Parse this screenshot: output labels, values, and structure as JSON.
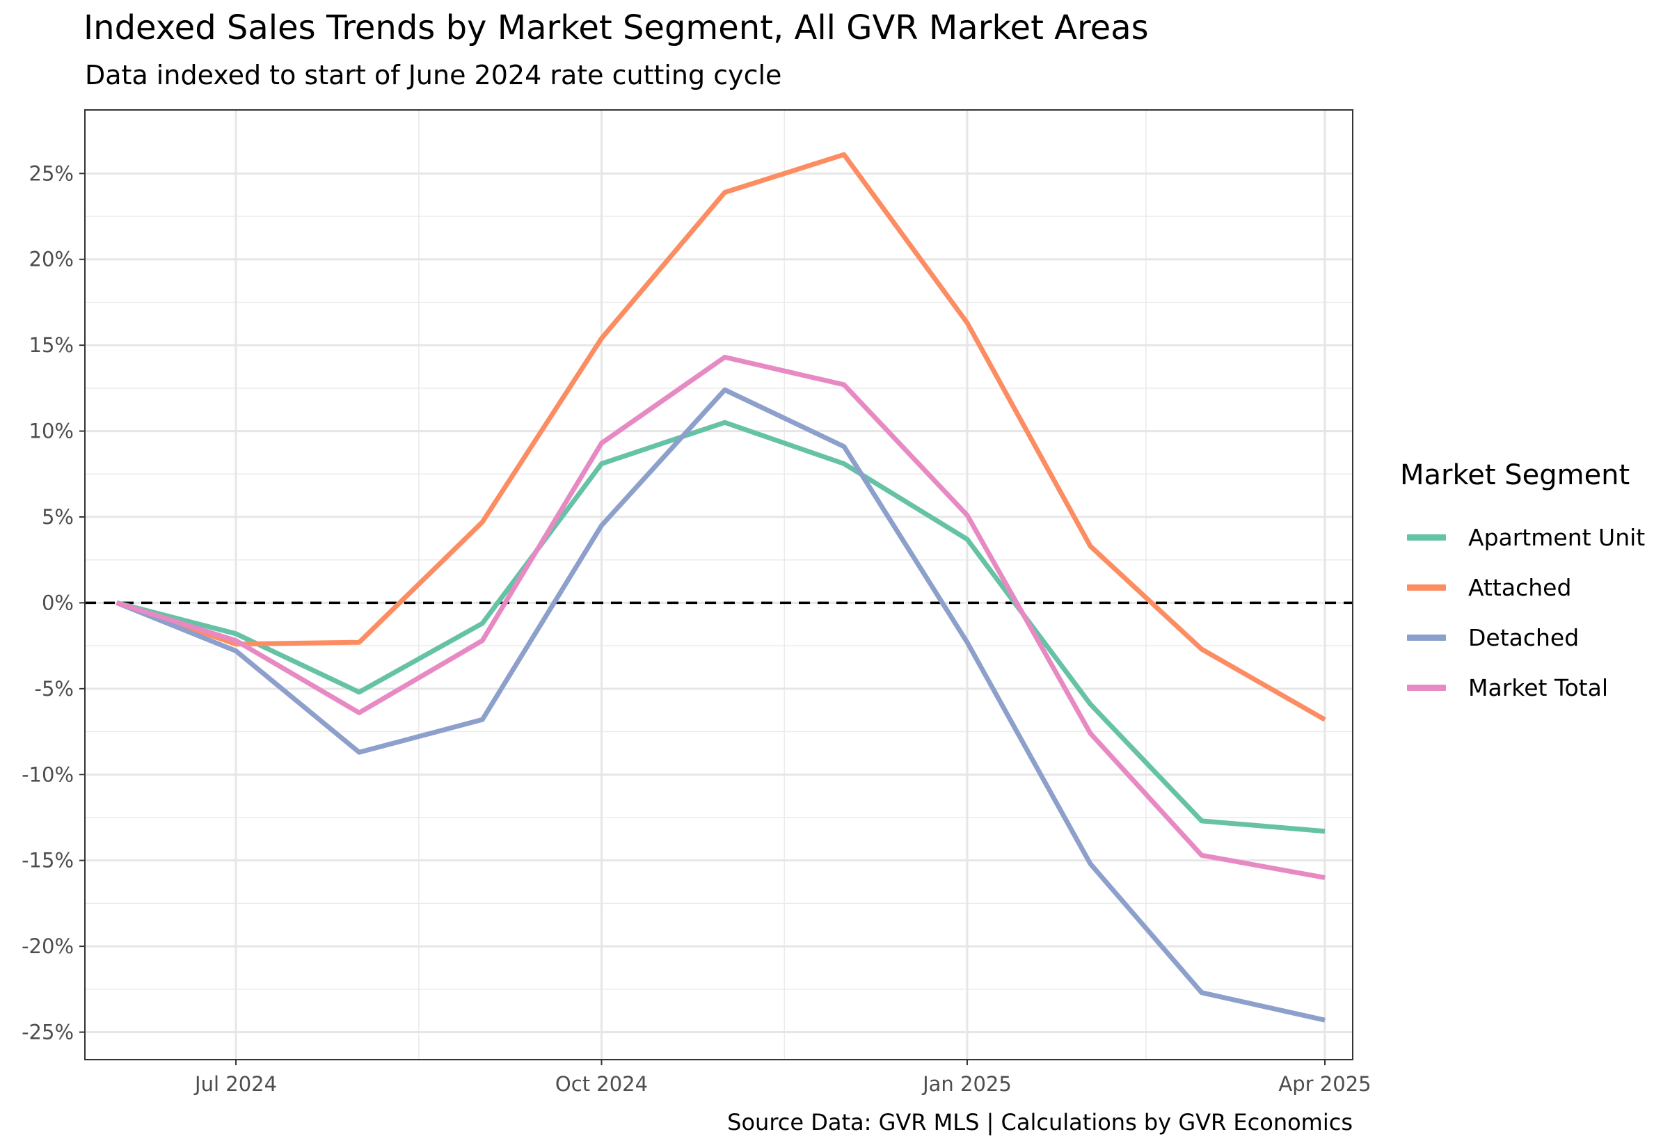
{
  "title": "Indexed Sales Trends by Market Segment, All GVR Market Areas",
  "subtitle": "Data indexed to start of June 2024 rate cutting cycle",
  "caption": "Source Data: GVR MLS | Calculations by GVR Economics",
  "legend": {
    "title": "Market Segment"
  },
  "chart_data": {
    "type": "line",
    "x": [
      "2024-06-01",
      "2024-07-01",
      "2024-08-01",
      "2024-09-01",
      "2024-10-01",
      "2024-11-01",
      "2024-12-01",
      "2025-01-01",
      "2025-02-01",
      "2025-03-01",
      "2025-04-01"
    ],
    "series": [
      {
        "name": "Apartment Unit",
        "color": "#66C2A5",
        "values": [
          0.0,
          -1.8,
          -5.2,
          -1.2,
          8.1,
          10.5,
          8.1,
          3.7,
          -5.9,
          -12.7,
          -13.3
        ]
      },
      {
        "name": "Attached",
        "color": "#FC8D62",
        "values": [
          0.0,
          -2.4,
          -2.3,
          4.7,
          15.4,
          23.9,
          26.1,
          16.3,
          3.3,
          -2.7,
          -6.8
        ]
      },
      {
        "name": "Detached",
        "color": "#8DA0CB",
        "values": [
          0.0,
          -2.8,
          -8.7,
          -6.8,
          4.5,
          12.4,
          9.1,
          -2.3,
          -15.2,
          -22.7,
          -24.3
        ]
      },
      {
        "name": "Market Total",
        "color": "#E78AC3",
        "values": [
          0.0,
          -2.2,
          -6.4,
          -2.2,
          9.3,
          14.3,
          12.7,
          5.1,
          -7.6,
          -14.7,
          -16.0
        ]
      }
    ],
    "x_ticks": [
      {
        "date": "2024-07-01",
        "label": "Jul 2024"
      },
      {
        "date": "2024-10-01",
        "label": "Oct 2024"
      },
      {
        "date": "2025-01-01",
        "label": "Jan 2025"
      },
      {
        "date": "2025-04-01",
        "label": "Apr 2025"
      }
    ],
    "y_ticks": [
      25,
      20,
      15,
      10,
      5,
      0,
      -5,
      -10,
      -15,
      -20,
      -25
    ],
    "y_tick_labels": [
      "25%",
      "20%",
      "15%",
      "10%",
      "5%",
      "0%",
      "-5%",
      "-10%",
      "-15%",
      "-20%",
      "-25%"
    ],
    "ylim": [
      -26.6,
      28.7
    ],
    "xlim": [
      "2024-05-24",
      "2025-04-08"
    ],
    "reference_line": {
      "y": 0,
      "style": "dashed",
      "color": "#000000"
    },
    "grid": true,
    "legend_position": "right"
  }
}
